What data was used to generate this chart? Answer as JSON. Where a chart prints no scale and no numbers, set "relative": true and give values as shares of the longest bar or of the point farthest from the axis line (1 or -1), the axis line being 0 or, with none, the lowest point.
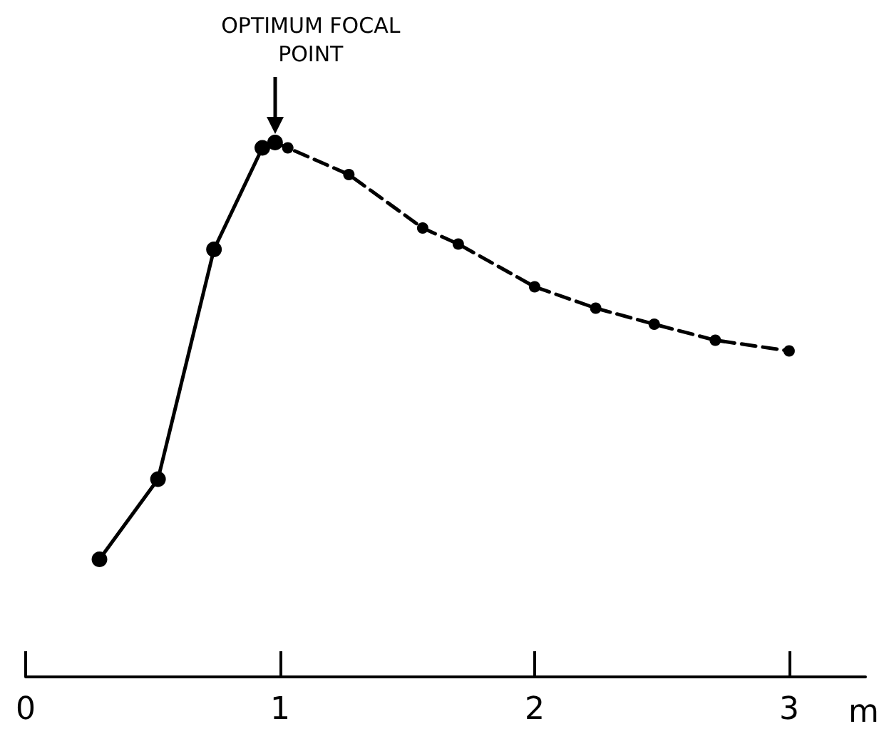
{
  "chart_data": {
    "type": "line",
    "relative": true,
    "xlabel": "m",
    "xlim": [
      0,
      3.3
    ],
    "xticks": [
      0,
      1,
      2,
      3
    ],
    "marker": "circle",
    "grid": false,
    "series": [
      {
        "color": "#000000",
        "line_style": "solid",
        "x": [
          0.29,
          0.52,
          0.74,
          0.93,
          0.98
        ],
        "values": [
          0.22,
          0.37,
          0.8,
          0.99,
          1
        ]
      },
      {
        "color": "#000000",
        "line_style": "dashed",
        "x": [
          0.98,
          1.03,
          1.27,
          1.56,
          1.7,
          2.0,
          2.24,
          2.47,
          2.71,
          3.0
        ],
        "values": [
          1,
          0.99,
          0.94,
          0.84,
          0.81,
          0.73,
          0.69,
          0.66,
          0.63,
          0.61
        ]
      }
    ],
    "annotations": [
      "OPTIMUM FOCAL POINT"
    ]
  }
}
